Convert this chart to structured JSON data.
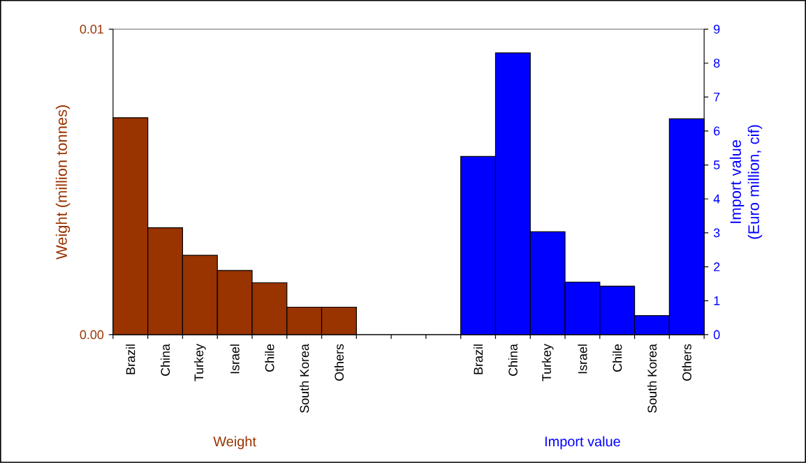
{
  "chart_data": {
    "type": "bar",
    "categories": [
      "Brazil",
      "China",
      "Turkey",
      "Israel",
      "Chile",
      "South Korea",
      "Others",
      null,
      null,
      null,
      "Brazil",
      "China",
      "Turkey",
      "Israel",
      "Chile",
      "South Korea",
      "Others"
    ],
    "series": [
      {
        "name": "Weight",
        "color": "#993300",
        "values": [
          0.0071,
          0.0035,
          0.0026,
          0.0021,
          0.0017,
          0.0009,
          0.0009,
          null,
          null,
          null,
          null,
          null,
          null,
          null,
          null,
          null,
          null
        ]
      },
      {
        "name": "Import value",
        "color": "#0000ff",
        "axis": "y2",
        "values": [
          null,
          null,
          null,
          null,
          null,
          null,
          null,
          null,
          null,
          null,
          5.25,
          8.3,
          3.03,
          1.55,
          1.43,
          0.56,
          6.36
        ]
      }
    ],
    "ylabel": "Weight (million tonnes)",
    "y2label": "Import value (Euro million, cif)",
    "ylim": [
      0,
      0.01
    ],
    "yticks": [
      {
        "value": 0,
        "label": "0.00"
      },
      0.01
    ],
    "y2lim": [
      0,
      9
    ],
    "y2ticks": [
      0,
      1,
      2,
      3,
      4,
      5,
      6,
      7,
      8,
      9
    ],
    "grid": "y"
  }
}
